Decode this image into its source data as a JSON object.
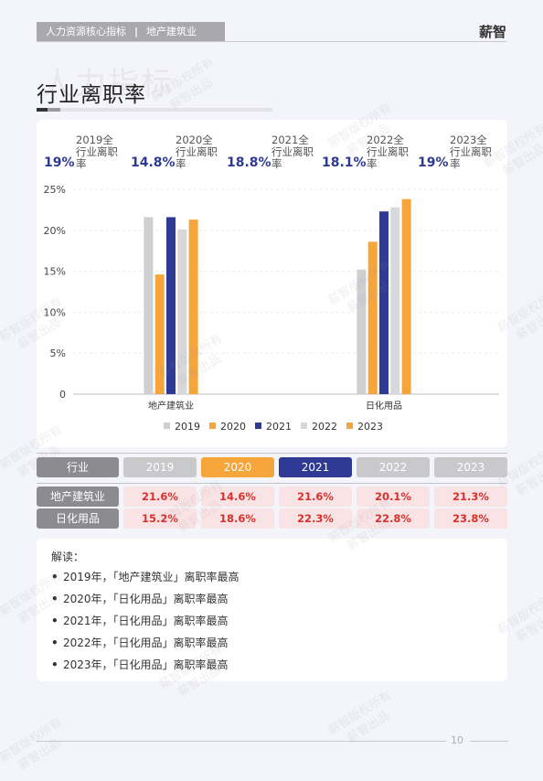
{
  "header": {
    "section": "人力资源核心指标",
    "separator": "|",
    "industry": "地产建筑业",
    "brand": "薪智"
  },
  "background_text": "人力指标",
  "page_title": "行业离职率",
  "stats": [
    {
      "pct": "19%",
      "label": "2019全行业离职率"
    },
    {
      "pct": "14.8%",
      "label": "2020全行业离职率"
    },
    {
      "pct": "18.8%",
      "label": "2021全行业离职率"
    },
    {
      "pct": "18.1%",
      "label": "2022全行业离职率"
    },
    {
      "pct": "19%",
      "label": "2023全行业离职率"
    }
  ],
  "chart_data": {
    "type": "bar",
    "categories": [
      "地产建筑业",
      "日化用品"
    ],
    "series": [
      {
        "name": "2019",
        "values": [
          21.6,
          15.2
        ],
        "color": "#cfcfd2"
      },
      {
        "name": "2020",
        "values": [
          14.6,
          18.6
        ],
        "color": "#f6a53b"
      },
      {
        "name": "2021",
        "values": [
          21.6,
          22.3
        ],
        "color": "#2e3a94"
      },
      {
        "name": "2022",
        "values": [
          20.1,
          22.8
        ],
        "color": "#d8d8db"
      },
      {
        "name": "2023",
        "values": [
          21.3,
          23.8
        ],
        "color": "#f6a53b"
      }
    ],
    "y_ticks": [
      "0",
      "5%",
      "10%",
      "15%",
      "20%",
      "25%"
    ],
    "ylim": [
      0,
      25
    ],
    "grid": true,
    "legend_position": "bottom"
  },
  "table": {
    "header_label": "行业",
    "years": [
      "2019",
      "2020",
      "2021",
      "2022",
      "2023"
    ],
    "header_colors": [
      "#c9c9cc",
      "#f6a53b",
      "#2e3a94",
      "#c9c9cc",
      "#c9c9cc"
    ],
    "rows": [
      {
        "label": "地产建筑业",
        "values": [
          "21.6%",
          "14.6%",
          "21.6%",
          "20.1%",
          "21.3%"
        ]
      },
      {
        "label": "日化用品",
        "values": [
          "15.2%",
          "18.6%",
          "22.3%",
          "22.8%",
          "23.8%"
        ]
      }
    ]
  },
  "notes": {
    "title": "解读：",
    "items": [
      "2019年，「地产建筑业」离职率最高",
      "2020年，「日化用品」离职率最高",
      "2021年，「日化用品」离职率最高",
      "2022年，「日化用品」离职率最高",
      "2023年，「日化用品」离职率最高"
    ]
  },
  "footer": {
    "page_number": "10"
  },
  "watermark": {
    "line1": "薪智版权所有",
    "line2": "薪智出品"
  }
}
